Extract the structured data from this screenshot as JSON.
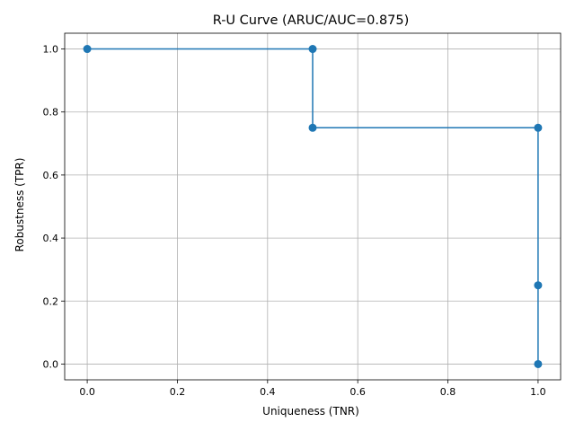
{
  "chart_data": {
    "type": "line",
    "title": "R-U Curve (ARUC/AUC=0.875)",
    "xlabel": "Uniqueness (TNR)",
    "ylabel": "Robustness (TPR)",
    "xlim": [
      -0.05,
      1.05
    ],
    "ylim": [
      -0.05,
      1.05
    ],
    "grid": true,
    "xticks": [
      0.0,
      0.2,
      0.4,
      0.6,
      0.8,
      1.0
    ],
    "yticks": [
      0.0,
      0.2,
      0.4,
      0.6,
      0.8,
      1.0
    ],
    "xtick_labels": [
      "0.0",
      "0.2",
      "0.4",
      "0.6",
      "0.8",
      "1.0"
    ],
    "ytick_labels": [
      "0.0",
      "0.2",
      "0.4",
      "0.6",
      "0.8",
      "1.0"
    ],
    "series": [
      {
        "x": [
          0.0,
          0.5,
          0.5,
          1.0,
          1.0,
          1.0
        ],
        "y": [
          1.0,
          1.0,
          0.75,
          0.75,
          0.25,
          0.0
        ],
        "color": "#1f77b4",
        "marker": "circle"
      }
    ]
  }
}
